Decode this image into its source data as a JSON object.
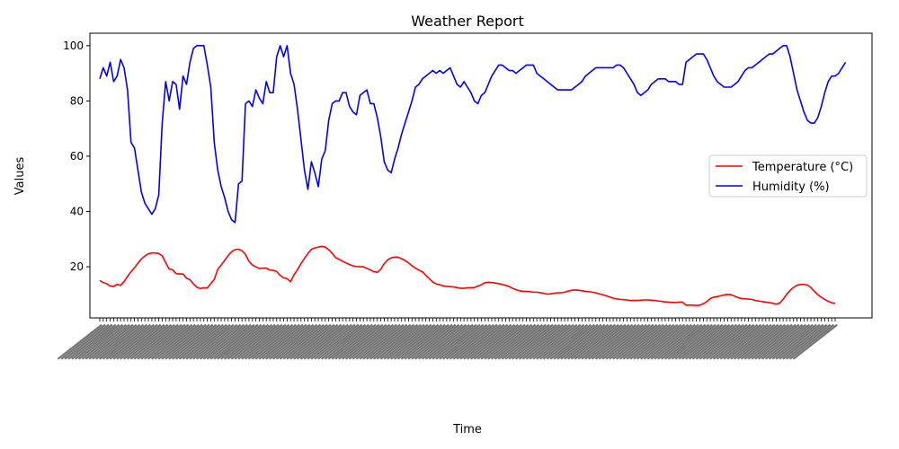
{
  "chart_data": {
    "type": "line",
    "title": "Weather Report",
    "xlabel": "Time",
    "ylabel": "Values",
    "ylim": [
      1.5,
      104.5
    ],
    "yticks": [
      20,
      40,
      60,
      80,
      100
    ],
    "grid": false,
    "legend_position": "center-right",
    "series": [
      {
        "name": "Temperature (°C)",
        "color": "#ff0000",
        "values": [
          15,
          14.3,
          13.9,
          13,
          12.9,
          13.6,
          13.3,
          14.6,
          16.5,
          18.2,
          19.6,
          21.3,
          22.8,
          23.9,
          24.7,
          25,
          25,
          24.8,
          24,
          21.5,
          19.2,
          18.9,
          17.5,
          17.4,
          17.4,
          15.9,
          15.3,
          13.8,
          12.6,
          12.1,
          12.4,
          12.3,
          13.9,
          15.4,
          19,
          20.6,
          22.3,
          24,
          25.4,
          26.2,
          26.4,
          25.8,
          24.5,
          22,
          20.6,
          20,
          19.4,
          19.5,
          19.5,
          18.8,
          18.7,
          18.3,
          16.9,
          16,
          15.7,
          14.6,
          17.1,
          18.9,
          21.1,
          23,
          24.8,
          26.3,
          26.8,
          27.1,
          27.4,
          27.1,
          26.2,
          24.9,
          23.3,
          22.7,
          22,
          21.4,
          20.8,
          20.3,
          20.1,
          20,
          20,
          19.4,
          18.9,
          18.2,
          18,
          19.1,
          21.1,
          22.5,
          23.2,
          23.5,
          23.5,
          22.9,
          22.3,
          21.4,
          20.4,
          19.5,
          18.8,
          18.2,
          16.9,
          15.7,
          14.5,
          13.8,
          13.5,
          13.1,
          12.9,
          12.8,
          12.7,
          12.5,
          12.2,
          12.2,
          12.4,
          12.4,
          12.5,
          13,
          13.5,
          14.2,
          14.4,
          14.3,
          14.1,
          13.9,
          13.6,
          13.3,
          12.9,
          12.2,
          11.7,
          11.3,
          11.1,
          11.1,
          11,
          10.8,
          10.8,
          10.6,
          10.4,
          10.1,
          10.2,
          10.4,
          10.6,
          10.6,
          10.8,
          11.2,
          11.5,
          11.6,
          11.5,
          11.3,
          11.1,
          11,
          10.8,
          10.6,
          10.2,
          9.9,
          9.5,
          9.1,
          8.6,
          8.4,
          8.2,
          8.1,
          8,
          7.8,
          7.8,
          7.8,
          7.9,
          8,
          8,
          7.9,
          7.8,
          7.6,
          7.5,
          7.3,
          7.2,
          7.1,
          7.1,
          7.2,
          7.2,
          6.1,
          6.1,
          6.1,
          6,
          6.1,
          6.6,
          7.4,
          8.5,
          9,
          9.2,
          9.5,
          9.8,
          10,
          9.9,
          9.4,
          8.8,
          8.5,
          8.4,
          8.3,
          8.2,
          7.8,
          7.6,
          7.4,
          7.2,
          7,
          6.8,
          6.5,
          6.8,
          8.2,
          10,
          11.4,
          12.5,
          13.3,
          13.6,
          13.6,
          13.4,
          12.5,
          11.1,
          9.9,
          9,
          8.2,
          7.5,
          7,
          6.7
        ]
      },
      {
        "name": "Humidity (%)",
        "color": "#0000ff",
        "values": [
          88,
          92,
          89,
          94,
          87,
          89,
          95,
          92,
          84,
          65,
          63,
          55,
          47,
          43,
          41,
          39,
          41,
          46,
          72,
          87,
          80,
          87,
          86,
          77,
          89,
          86,
          94,
          99,
          100,
          100,
          100,
          93,
          85,
          65,
          55,
          49,
          45,
          40,
          37,
          36,
          50,
          51,
          79,
          80,
          78,
          84,
          81,
          79,
          87,
          83,
          83,
          96,
          100,
          96,
          100,
          90,
          86,
          77,
          66,
          55,
          48,
          58,
          54,
          49,
          59,
          62,
          73,
          79,
          80,
          80,
          83,
          83,
          78,
          76,
          75,
          82,
          83,
          84,
          79,
          79,
          74,
          67,
          58,
          55,
          54,
          59,
          63,
          68,
          72,
          76,
          80,
          85,
          86,
          88,
          89,
          90,
          91,
          90,
          91,
          90,
          91,
          92,
          89,
          86,
          85,
          87,
          85,
          83,
          80,
          79,
          82,
          83,
          86,
          89,
          91,
          93,
          93,
          92,
          91,
          91,
          90,
          91,
          92,
          93,
          93,
          93,
          90,
          89,
          88,
          87,
          86,
          85,
          84,
          84,
          84,
          84,
          84,
          85,
          86,
          87,
          89,
          90,
          91,
          92,
          92,
          92,
          92,
          92,
          92,
          93,
          93,
          92,
          90,
          88,
          86,
          83,
          82,
          83,
          84,
          86,
          87,
          88,
          88,
          88,
          87,
          87,
          87,
          86,
          86,
          94,
          95,
          96,
          97,
          97,
          97,
          95,
          92,
          89,
          87,
          86,
          85,
          85,
          85,
          86,
          87,
          89,
          91,
          92,
          92,
          93,
          94,
          95,
          96,
          97,
          97,
          98,
          99,
          100,
          100,
          96,
          90,
          84,
          80,
          76,
          73,
          72,
          72,
          74,
          78,
          83,
          87,
          89,
          89,
          90,
          92,
          94
        ]
      }
    ]
  }
}
